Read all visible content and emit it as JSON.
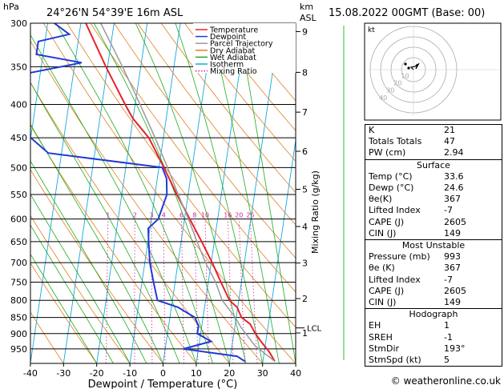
{
  "header": {
    "hpa_unit": "hPa",
    "location": "24°26'N  54°39'E  16m  ASL",
    "km_unit": "km",
    "asl_unit": "ASL",
    "datetime": "15.08.2022  00GMT  (Base: 00)"
  },
  "chart_data": {
    "type": "line",
    "xlabel": "Dewpoint / Temperature (°C)",
    "ylabel_right": "Mixing Ratio (g/kg)",
    "xlim": [
      -40,
      40
    ],
    "ylim": [
      1000,
      300
    ],
    "x_ticks": [
      -40,
      -30,
      -20,
      -10,
      0,
      10,
      20,
      30,
      40
    ],
    "pressure_ticks": [
      300,
      350,
      400,
      450,
      500,
      550,
      600,
      650,
      700,
      750,
      800,
      850,
      900,
      950
    ],
    "km_ticks": [
      {
        "label": "9",
        "p": 309
      },
      {
        "label": "8",
        "p": 357
      },
      {
        "label": "7",
        "p": 411
      },
      {
        "label": "6",
        "p": 472
      },
      {
        "label": "5",
        "p": 540
      },
      {
        "label": "4",
        "p": 616
      },
      {
        "label": "3",
        "p": 701
      },
      {
        "label": "2",
        "p": 795
      },
      {
        "label": "1",
        "p": 898
      }
    ],
    "lcl": {
      "label": "LCL",
      "p": 882
    },
    "mixing_ratio_labels": [
      "1",
      "2",
      "3",
      "4",
      "6",
      "8",
      "10",
      "16",
      "20",
      "25"
    ],
    "mixing_ratio_values": [
      1,
      2,
      3,
      4,
      6,
      8,
      10,
      16,
      20,
      25
    ],
    "legend": [
      {
        "name": "Temperature",
        "color": "#e8212b"
      },
      {
        "name": "Dewpoint",
        "color": "#1e3bd6"
      },
      {
        "name": "Parcel Trajectory",
        "color": "#9a9a9a"
      },
      {
        "name": "Dry Adiabat",
        "color": "#e08020"
      },
      {
        "name": "Wet Adiabat",
        "color": "#1faa1f"
      },
      {
        "name": "Isotherm",
        "color": "#15a8e0"
      },
      {
        "name": "Mixing Ratio",
        "color": "#d0209a"
      }
    ],
    "series": [
      {
        "name": "Temperature",
        "color": "#e8212b",
        "points": [
          [
            33.6,
            993
          ],
          [
            31.5,
            960
          ],
          [
            28.5,
            925
          ],
          [
            26.5,
            900
          ],
          [
            24.5,
            870
          ],
          [
            21.6,
            850
          ],
          [
            19.8,
            820
          ],
          [
            17.2,
            800
          ],
          [
            13.8,
            750
          ],
          [
            10.3,
            700
          ],
          [
            6.2,
            650
          ],
          [
            1.6,
            600
          ],
          [
            -3.4,
            550
          ],
          [
            -8.5,
            500
          ],
          [
            -14.4,
            450
          ],
          [
            -20.1,
            420
          ],
          [
            -23,
            400
          ],
          [
            -30.5,
            350
          ],
          [
            -38.5,
            300
          ]
        ]
      },
      {
        "name": "Dewpoint",
        "color": "#1e3bd6",
        "points": [
          [
            24.6,
            993
          ],
          [
            22,
            975
          ],
          [
            5.5,
            950
          ],
          [
            13.5,
            925
          ],
          [
            9,
            900
          ],
          [
            9,
            875
          ],
          [
            7.5,
            850
          ],
          [
            2,
            820
          ],
          [
            -4.5,
            800
          ],
          [
            -6.5,
            750
          ],
          [
            -8.5,
            700
          ],
          [
            -9.8,
            650
          ],
          [
            -10.5,
            620
          ],
          [
            -7.9,
            600
          ],
          [
            -6.4,
            550
          ],
          [
            -7.2,
            520
          ],
          [
            -9,
            500
          ],
          [
            -44,
            475
          ],
          [
            -50,
            450
          ],
          [
            -55,
            425
          ],
          [
            -58,
            400
          ],
          [
            -57,
            380
          ],
          [
            -56,
            360
          ],
          [
            -38,
            345
          ],
          [
            -52,
            335
          ],
          [
            -52,
            320
          ],
          [
            -43,
            312
          ],
          [
            -48,
            300
          ]
        ]
      },
      {
        "name": "Parcel Trajectory",
        "color": "#9a9a9a",
        "points": [
          [
            33.6,
            993
          ],
          [
            27,
            940
          ],
          [
            22,
            882
          ],
          [
            19.7,
            850
          ],
          [
            15,
            800
          ],
          [
            12.2,
            750
          ],
          [
            8.3,
            700
          ],
          [
            4.8,
            650
          ],
          [
            1.2,
            600
          ],
          [
            -3,
            550
          ],
          [
            -7.4,
            500
          ],
          [
            -12.5,
            450
          ],
          [
            -18.5,
            400
          ],
          [
            -25.5,
            350
          ],
          [
            -34,
            300
          ]
        ]
      }
    ]
  },
  "hodograph": {
    "unit": "kt",
    "ring_labels": [
      "10",
      "20",
      "30",
      "40"
    ]
  },
  "indices": {
    "rows": [
      {
        "label": "K",
        "value": "21"
      },
      {
        "label": "Totals Totals",
        "value": "47"
      },
      {
        "label": "PW (cm)",
        "value": "2.94"
      }
    ]
  },
  "surface": {
    "title": "Surface",
    "rows": [
      {
        "label": "Temp (°C)",
        "value": "33.6"
      },
      {
        "label": "Dewp (°C)",
        "value": "24.6"
      },
      {
        "label": "θe(K)",
        "value": "367"
      },
      {
        "label": "Lifted Index",
        "value": "-7"
      },
      {
        "label": "CAPE (J)",
        "value": "2605"
      },
      {
        "label": "CIN (J)",
        "value": "149"
      }
    ]
  },
  "most_unstable": {
    "title": "Most Unstable",
    "rows": [
      {
        "label": "Pressure (mb)",
        "value": "993"
      },
      {
        "label": "θe (K)",
        "value": "367"
      },
      {
        "label": "Lifted Index",
        "value": "-7"
      },
      {
        "label": "CAPE (J)",
        "value": "2605"
      },
      {
        "label": "CIN (J)",
        "value": "149"
      }
    ]
  },
  "hodograph_table": {
    "title": "Hodograph",
    "rows": [
      {
        "label": "EH",
        "value": "1"
      },
      {
        "label": "SREH",
        "value": "-1"
      },
      {
        "label": "StmDir",
        "value": "193°"
      },
      {
        "label": "StmSpd (kt)",
        "value": "5"
      }
    ]
  },
  "footer": {
    "copyright": "© weatheronline.co.uk"
  }
}
